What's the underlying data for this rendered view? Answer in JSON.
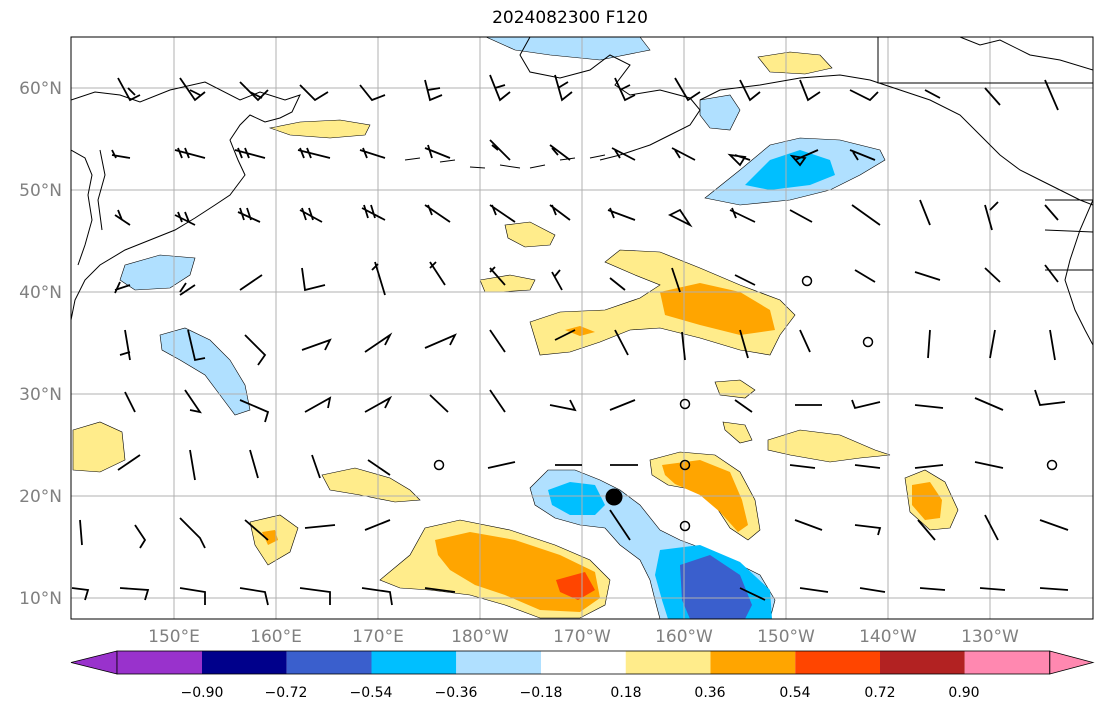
{
  "title": "2024082300 F120",
  "axes": {
    "lat_labels": [
      "60°N",
      "50°N",
      "40°N",
      "30°N",
      "20°N",
      "10°N"
    ],
    "lon_labels": [
      "150°E",
      "160°E",
      "170°E",
      "180°W",
      "170°W",
      "160°W",
      "150°W",
      "140°W",
      "130°W"
    ]
  },
  "colorbar": {
    "tick_labels": [
      "−0.90",
      "−0.72",
      "−0.54",
      "−0.36",
      "−0.18",
      "0.18",
      "0.36",
      "0.54",
      "0.72",
      "0.90"
    ],
    "levels": [
      -0.9,
      -0.72,
      -0.54,
      -0.36,
      -0.18,
      0.18,
      0.36,
      0.54,
      0.72,
      0.9
    ],
    "colors": [
      "#9932cc",
      "#00008b",
      "#3a5fcd",
      "#00bfff",
      "#b0e0ff",
      "#ffffff",
      "#ffec8b",
      "#ffa500",
      "#ff4500",
      "#b22222",
      "#ff88b0"
    ]
  },
  "storm_center": {
    "lat": 20,
    "lon": -167
  },
  "map_colors": {
    "grid": "#b0b0b0",
    "coast": "#000000"
  }
}
